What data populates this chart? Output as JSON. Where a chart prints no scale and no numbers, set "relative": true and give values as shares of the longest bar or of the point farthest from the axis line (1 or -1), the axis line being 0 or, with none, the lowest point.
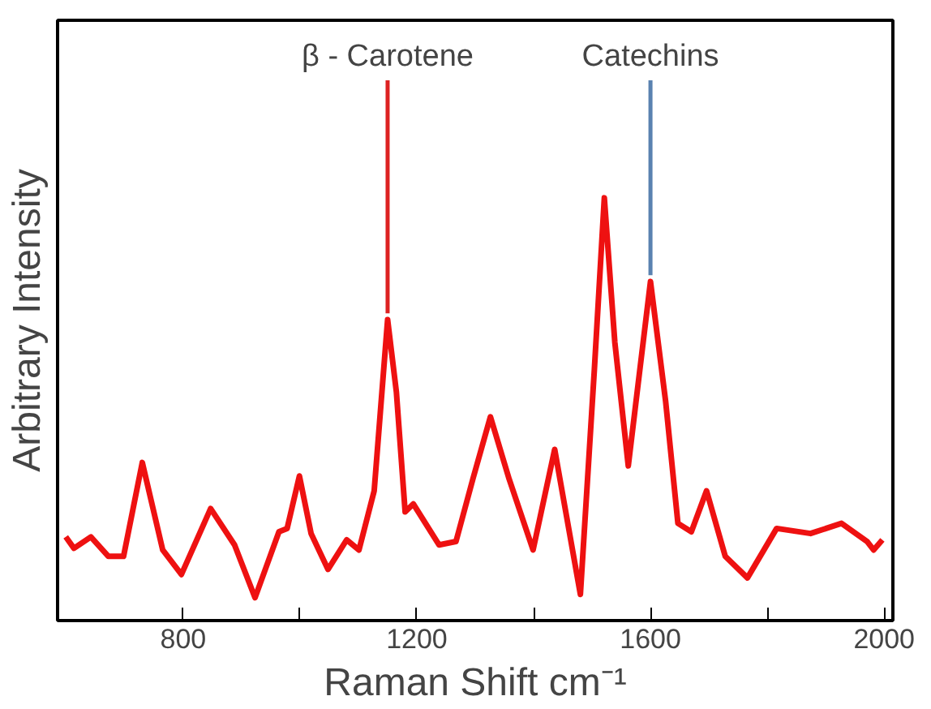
{
  "chart_data": {
    "type": "line",
    "relative": true,
    "xlabel": "Raman Shift cm⁻¹",
    "ylabel": "Arbitrary Intensity",
    "x": [
      599,
      613,
      642,
      672,
      698,
      730,
      765,
      797,
      847,
      888,
      923,
      964,
      978,
      999,
      1019,
      1048,
      1080,
      1101,
      1127,
      1150,
      1165,
      1180,
      1194,
      1238,
      1267,
      1296,
      1326,
      1358,
      1399,
      1436,
      1480,
      1504,
      1521,
      1539,
      1562,
      1600,
      1626,
      1647,
      1670,
      1696,
      1728,
      1766,
      1816,
      1874,
      1927,
      1971,
      1982,
      1997
    ],
    "series": [
      {
        "color": "#ee1111",
        "values": [
          0.198,
          0.171,
          0.198,
          0.152,
          0.152,
          0.374,
          0.167,
          0.109,
          0.265,
          0.179,
          0.054,
          0.21,
          0.218,
          0.342,
          0.206,
          0.121,
          0.191,
          0.167,
          0.307,
          0.712,
          0.541,
          0.257,
          0.276,
          0.179,
          0.187,
          0.335,
          0.482,
          0.335,
          0.167,
          0.405,
          0.062,
          0.595,
          1.0,
          0.658,
          0.366,
          0.802,
          0.518,
          0.23,
          0.21,
          0.307,
          0.152,
          0.101,
          0.218,
          0.206,
          0.23,
          0.187,
          0.167,
          0.191
        ]
      }
    ],
    "xlim": [
      585,
      2015
    ],
    "xticks": [
      800,
      {
        "value": 1000,
        "label": null
      },
      1200,
      {
        "value": 1400,
        "label": null
      },
      1600,
      {
        "value": 1800,
        "label": null
      },
      2000
    ],
    "annotations": [
      {
        "text": "β - Carotene",
        "x": 1150,
        "y": 0.712
      },
      {
        "text": "Catechins",
        "x": 1600,
        "y": 0.802
      }
    ],
    "grid": false,
    "line_style": "solid"
  }
}
